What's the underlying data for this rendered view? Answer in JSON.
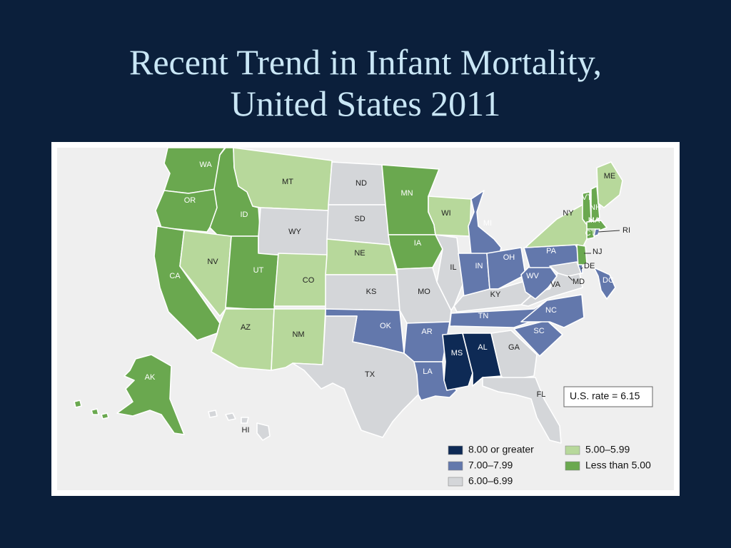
{
  "slide": {
    "title_line1": "Recent Trend in Infant Mortality,",
    "title_line2": "United States 2011"
  },
  "colors": {
    "background": "#0b1f3b",
    "title": "#c9e6f5",
    "c8": "#0e2a55",
    "c7": "#6378ac",
    "c6": "#d4d6d9",
    "c5": "#b7d89b",
    "c4": "#6aa84f"
  },
  "map": {
    "us_rate_label": "U.S. rate = 6.15",
    "legend": [
      {
        "key": "c8",
        "label": "8.00 or greater"
      },
      {
        "key": "c7",
        "label": "7.00–7.99"
      },
      {
        "key": "c6",
        "label": "6.00–6.99"
      },
      {
        "key": "c5",
        "label": "5.00–5.99"
      },
      {
        "key": "c4",
        "label": "Less than 5.00"
      }
    ],
    "states": [
      {
        "abbr": "WA",
        "cat": "c4"
      },
      {
        "abbr": "OR",
        "cat": "c4"
      },
      {
        "abbr": "CA",
        "cat": "c4"
      },
      {
        "abbr": "ID",
        "cat": "c4"
      },
      {
        "abbr": "NV",
        "cat": "c5"
      },
      {
        "abbr": "UT",
        "cat": "c4"
      },
      {
        "abbr": "AZ",
        "cat": "c5"
      },
      {
        "abbr": "MT",
        "cat": "c5"
      },
      {
        "abbr": "WY",
        "cat": "c6"
      },
      {
        "abbr": "CO",
        "cat": "c5"
      },
      {
        "abbr": "NM",
        "cat": "c5"
      },
      {
        "abbr": "ND",
        "cat": "c6"
      },
      {
        "abbr": "SD",
        "cat": "c6"
      },
      {
        "abbr": "NE",
        "cat": "c5"
      },
      {
        "abbr": "KS",
        "cat": "c6"
      },
      {
        "abbr": "OK",
        "cat": "c7"
      },
      {
        "abbr": "TX",
        "cat": "c6"
      },
      {
        "abbr": "MN",
        "cat": "c4"
      },
      {
        "abbr": "IA",
        "cat": "c4"
      },
      {
        "abbr": "MO",
        "cat": "c6"
      },
      {
        "abbr": "AR",
        "cat": "c7"
      },
      {
        "abbr": "LA",
        "cat": "c7"
      },
      {
        "abbr": "WI",
        "cat": "c5"
      },
      {
        "abbr": "IL",
        "cat": "c6"
      },
      {
        "abbr": "MI",
        "cat": "c7"
      },
      {
        "abbr": "IN",
        "cat": "c7"
      },
      {
        "abbr": "OH",
        "cat": "c7"
      },
      {
        "abbr": "KY",
        "cat": "c6"
      },
      {
        "abbr": "TN",
        "cat": "c7"
      },
      {
        "abbr": "MS",
        "cat": "c8"
      },
      {
        "abbr": "AL",
        "cat": "c8"
      },
      {
        "abbr": "GA",
        "cat": "c6"
      },
      {
        "abbr": "FL",
        "cat": "c6"
      },
      {
        "abbr": "SC",
        "cat": "c7"
      },
      {
        "abbr": "NC",
        "cat": "c7"
      },
      {
        "abbr": "VA",
        "cat": "c6"
      },
      {
        "abbr": "WV",
        "cat": "c7"
      },
      {
        "abbr": "PA",
        "cat": "c7"
      },
      {
        "abbr": "NY",
        "cat": "c5"
      },
      {
        "abbr": "VT",
        "cat": "c4"
      },
      {
        "abbr": "NH",
        "cat": "c4"
      },
      {
        "abbr": "ME",
        "cat": "c5"
      },
      {
        "abbr": "MA",
        "cat": "c4"
      },
      {
        "abbr": "CT",
        "cat": "c4"
      },
      {
        "abbr": "RI",
        "cat": "c7"
      },
      {
        "abbr": "NJ",
        "cat": "c4"
      },
      {
        "abbr": "DE",
        "cat": "c7"
      },
      {
        "abbr": "MD",
        "cat": "c6"
      },
      {
        "abbr": "DC",
        "cat": "c7"
      },
      {
        "abbr": "AK",
        "cat": "c4"
      },
      {
        "abbr": "HI",
        "cat": "c6"
      }
    ]
  }
}
